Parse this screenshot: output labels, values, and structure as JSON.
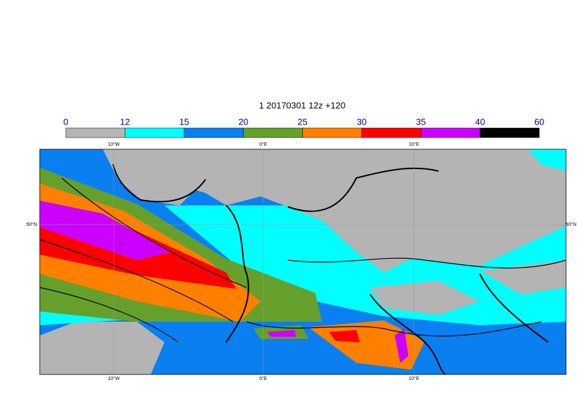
{
  "title": "1 20170301 12z +120",
  "legend": {
    "ticks": [
      0,
      12,
      15,
      20,
      25,
      30,
      35,
      40,
      60
    ],
    "colors": [
      "#b4b4b4",
      "#00ffff",
      "#0a7ff0",
      "#66a02c",
      "#ff8000",
      "#ff0000",
      "#cc00ff",
      "#000000"
    ]
  },
  "map": {
    "top_labels": [
      "10°W",
      "0°E",
      "10°E"
    ],
    "bottom_labels": [
      "10°W",
      "0°E",
      "10°E"
    ],
    "left_label": "50°N",
    "right_label": "50°N"
  }
}
